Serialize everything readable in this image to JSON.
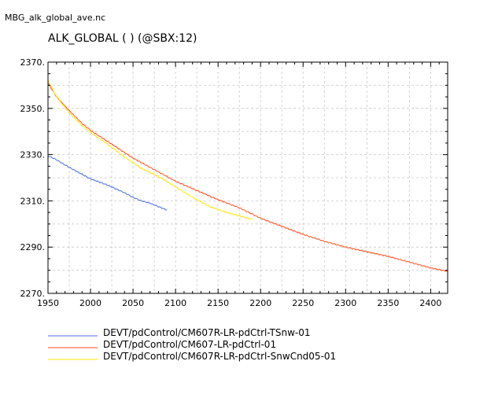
{
  "file_title": "MBG_alk_global_ave.nc",
  "chart_data": {
    "type": "line",
    "title": "ALK_GLOBAL ( ) (@SBX:12)",
    "xlabel": "",
    "ylabel": "",
    "xlim": [
      1950,
      2420
    ],
    "ylim": [
      2270,
      2370
    ],
    "xticks": [
      1950,
      2000,
      2050,
      2100,
      2150,
      2200,
      2250,
      2300,
      2350,
      2400
    ],
    "yticks": [
      2270,
      2290,
      2310,
      2330,
      2350,
      2370
    ],
    "ytick_labels": [
      "2270.",
      "2290.",
      "2310.",
      "2330.",
      "2350.",
      "2370."
    ],
    "grid": true,
    "legend_position": "bottom-left",
    "series": [
      {
        "name": "DEVT/pdControl/CM607R-LR-pdCtrl-TSnw-01",
        "color": "#4a6fe0",
        "points": [
          [
            1950,
            2329.5
          ],
          [
            1960,
            2327.8
          ],
          [
            1970,
            2325.5
          ],
          [
            1980,
            2323.5
          ],
          [
            1990,
            2321.5
          ],
          [
            2000,
            2319.5
          ],
          [
            2010,
            2318.2
          ],
          [
            2020,
            2316.8
          ],
          [
            2030,
            2315.2
          ],
          [
            2040,
            2313.5
          ],
          [
            2050,
            2311.5
          ],
          [
            2060,
            2310.0
          ],
          [
            2070,
            2309.0
          ],
          [
            2080,
            2307.5
          ],
          [
            2090,
            2306.0
          ]
        ]
      },
      {
        "name": "DEVT/pdControl/CM607-LR-pdCtrl-01",
        "color": "#ff4f1f",
        "points": [
          [
            1950,
            2361
          ],
          [
            1960,
            2355
          ],
          [
            1975,
            2349
          ],
          [
            1990,
            2343.5
          ],
          [
            2000,
            2340.5
          ],
          [
            2025,
            2334.5
          ],
          [
            2050,
            2328.5
          ],
          [
            2075,
            2323.5
          ],
          [
            2100,
            2318.5
          ],
          [
            2125,
            2314.5
          ],
          [
            2150,
            2310.5
          ],
          [
            2175,
            2307.0
          ],
          [
            2200,
            2302.5
          ],
          [
            2225,
            2299.0
          ],
          [
            2250,
            2295.5
          ],
          [
            2275,
            2292.5
          ],
          [
            2300,
            2290.0
          ],
          [
            2325,
            2288.0
          ],
          [
            2350,
            2286.0
          ],
          [
            2375,
            2283.5
          ],
          [
            2400,
            2281.0
          ],
          [
            2420,
            2279.5
          ]
        ]
      },
      {
        "name": "DEVT/pdControl/CM607R-LR-pdCtrl-SnwCnd05-01",
        "color": "#ffe600",
        "points": [
          [
            1950,
            2362
          ],
          [
            1960,
            2355
          ],
          [
            1975,
            2348
          ],
          [
            1990,
            2342.5
          ],
          [
            2000,
            2339.5
          ],
          [
            2020,
            2334.5
          ],
          [
            2040,
            2329.0
          ],
          [
            2060,
            2324.0
          ],
          [
            2080,
            2320.5
          ],
          [
            2100,
            2316.0
          ],
          [
            2120,
            2311.5
          ],
          [
            2140,
            2307.5
          ],
          [
            2160,
            2305.0
          ],
          [
            2180,
            2303.0
          ],
          [
            2190,
            2302.0
          ]
        ]
      }
    ]
  }
}
